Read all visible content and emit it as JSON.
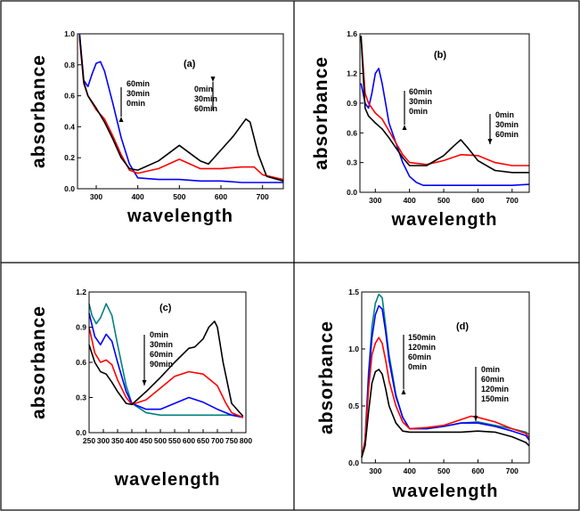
{
  "chart_data": [
    {
      "type": "line",
      "panel_label": "(a)",
      "xlabel": "wavelength",
      "ylabel": "absorbance",
      "xlim": [
        255,
        750
      ],
      "ylim": [
        0,
        1.0
      ],
      "xticks": [
        300,
        400,
        500,
        600,
        700
      ],
      "yticks": [
        0.0,
        0.2,
        0.4,
        0.6,
        0.8,
        1.0
      ],
      "ytick_labels": [
        "0.0",
        "0.2",
        "0.4",
        "0.6",
        "0.8",
        "1.0"
      ],
      "annotations": [
        {
          "lines": [
            "60min",
            "30min",
            "0min"
          ],
          "arrow": "up"
        },
        {
          "lines": [
            "0min",
            "30min",
            "60min"
          ],
          "arrow": "down"
        }
      ],
      "series": [
        {
          "color": "#0000ff",
          "x": [
            260,
            270,
            280,
            290,
            300,
            310,
            320,
            340,
            360,
            380,
            400,
            450,
            500,
            550,
            600,
            650,
            700,
            750
          ],
          "y": [
            1.0,
            0.7,
            0.66,
            0.74,
            0.81,
            0.82,
            0.76,
            0.55,
            0.33,
            0.16,
            0.07,
            0.06,
            0.06,
            0.05,
            0.05,
            0.04,
            0.04,
            0.04
          ]
        },
        {
          "color": "#ff0000",
          "x": [
            260,
            270,
            280,
            300,
            320,
            340,
            360,
            380,
            400,
            450,
            500,
            550,
            600,
            650,
            680,
            700,
            750
          ],
          "y": [
            0.97,
            0.68,
            0.6,
            0.51,
            0.45,
            0.34,
            0.22,
            0.12,
            0.1,
            0.13,
            0.19,
            0.13,
            0.13,
            0.14,
            0.14,
            0.09,
            0.06
          ]
        },
        {
          "color": "#000000",
          "x": [
            260,
            270,
            280,
            300,
            320,
            340,
            360,
            380,
            400,
            450,
            500,
            550,
            570,
            600,
            630,
            660,
            670,
            690,
            710,
            750
          ],
          "y": [
            0.99,
            0.69,
            0.6,
            0.52,
            0.43,
            0.32,
            0.2,
            0.13,
            0.12,
            0.18,
            0.28,
            0.18,
            0.16,
            0.25,
            0.34,
            0.45,
            0.43,
            0.22,
            0.08,
            0.05
          ]
        }
      ]
    },
    {
      "type": "line",
      "panel_label": "(b)",
      "xlabel": "wavelength",
      "ylabel": "absorbance",
      "xlim": [
        255,
        750
      ],
      "ylim": [
        0,
        1.6
      ],
      "xticks": [
        300,
        400,
        500,
        600,
        700
      ],
      "yticks": [
        0.0,
        0.3,
        0.6,
        0.9,
        1.2,
        1.6
      ],
      "ytick_labels": [
        "0.0",
        "0.3",
        "0.6",
        "0.9",
        "1.2",
        "1.6"
      ],
      "annotations": [
        {
          "lines": [
            "60min",
            "30min",
            "0min"
          ],
          "arrow": "up"
        },
        {
          "lines": [
            "0min",
            "30min",
            "60min"
          ],
          "arrow": "down"
        }
      ],
      "series": [
        {
          "color": "#0000ff",
          "x": [
            258,
            270,
            280,
            290,
            300,
            310,
            320,
            330,
            340,
            360,
            380,
            400,
            420,
            440,
            500,
            600,
            700,
            750
          ],
          "y": [
            1.1,
            0.9,
            0.85,
            1.0,
            1.2,
            1.25,
            1.1,
            0.9,
            0.7,
            0.5,
            0.3,
            0.16,
            0.1,
            0.07,
            0.07,
            0.07,
            0.07,
            0.08
          ]
        },
        {
          "color": "#ff0000",
          "x": [
            258,
            270,
            280,
            300,
            320,
            340,
            360,
            380,
            400,
            450,
            500,
            550,
            600,
            650,
            700,
            750
          ],
          "y": [
            1.58,
            1.0,
            0.9,
            0.8,
            0.74,
            0.62,
            0.5,
            0.38,
            0.3,
            0.28,
            0.32,
            0.38,
            0.37,
            0.3,
            0.27,
            0.27
          ]
        },
        {
          "color": "#000000",
          "x": [
            258,
            270,
            280,
            300,
            320,
            340,
            360,
            380,
            400,
            450,
            500,
            530,
            550,
            570,
            600,
            650,
            700,
            750
          ],
          "y": [
            1.58,
            0.85,
            0.77,
            0.7,
            0.64,
            0.55,
            0.45,
            0.35,
            0.27,
            0.27,
            0.37,
            0.47,
            0.53,
            0.45,
            0.32,
            0.22,
            0.2,
            0.2
          ]
        }
      ]
    },
    {
      "type": "line",
      "panel_label": "(c)",
      "xlabel": "wavelength",
      "ylabel": "absorbance",
      "xlim": [
        250,
        800
      ],
      "ylim": [
        0,
        1.2
      ],
      "xticks": [
        250,
        300,
        350,
        400,
        450,
        500,
        550,
        600,
        650,
        700,
        750,
        800
      ],
      "xtick_labels": [
        "250",
        "300",
        "350",
        "400",
        "450",
        "500",
        "550",
        "600",
        "650",
        "700",
        "750",
        "800"
      ],
      "yticks": [
        0.0,
        0.3,
        0.6,
        0.9,
        1.2
      ],
      "ytick_labels": [
        "0.0",
        "0.3",
        "0.6",
        "0.9",
        "1.2"
      ],
      "annotations": [
        {
          "lines": [
            "0min",
            "30min",
            "60min",
            "90min"
          ],
          "arrow": "down"
        }
      ],
      "series": [
        {
          "color": "#008080",
          "x": [
            250,
            260,
            275,
            290,
            310,
            330,
            350,
            380,
            400,
            450,
            500,
            600,
            700,
            760,
            790
          ],
          "y": [
            1.1,
            1.0,
            0.93,
            0.98,
            1.1,
            1.0,
            0.75,
            0.4,
            0.25,
            0.17,
            0.15,
            0.15,
            0.15,
            0.15,
            0.13
          ]
        },
        {
          "color": "#0000ff",
          "x": [
            250,
            270,
            290,
            310,
            330,
            350,
            380,
            400,
            450,
            500,
            550,
            600,
            650,
            700,
            750,
            790
          ],
          "y": [
            1.02,
            0.82,
            0.75,
            0.84,
            0.78,
            0.6,
            0.35,
            0.25,
            0.2,
            0.2,
            0.25,
            0.3,
            0.26,
            0.2,
            0.15,
            0.13
          ]
        },
        {
          "color": "#ff0000",
          "x": [
            250,
            270,
            290,
            310,
            330,
            350,
            380,
            400,
            450,
            500,
            550,
            600,
            650,
            700,
            730,
            750,
            790
          ],
          "y": [
            0.9,
            0.68,
            0.6,
            0.62,
            0.58,
            0.45,
            0.3,
            0.24,
            0.28,
            0.38,
            0.48,
            0.52,
            0.5,
            0.4,
            0.25,
            0.17,
            0.13
          ]
        },
        {
          "color": "#000000",
          "x": [
            250,
            270,
            290,
            310,
            330,
            350,
            380,
            400,
            450,
            500,
            550,
            600,
            620,
            650,
            670,
            690,
            700,
            720,
            750,
            790
          ],
          "y": [
            0.75,
            0.6,
            0.52,
            0.5,
            0.43,
            0.35,
            0.25,
            0.24,
            0.35,
            0.47,
            0.6,
            0.72,
            0.73,
            0.8,
            0.9,
            0.95,
            0.9,
            0.6,
            0.25,
            0.14
          ]
        }
      ]
    },
    {
      "type": "line",
      "panel_label": "(d)",
      "xlabel": "wavelength",
      "ylabel": "absorbance",
      "xlim": [
        260,
        750
      ],
      "ylim": [
        0,
        1.5
      ],
      "xticks": [
        300,
        400,
        500,
        600,
        700
      ],
      "yticks": [
        0.0,
        0.5,
        1.0,
        1.5
      ],
      "ytick_labels": [
        "0.0",
        "0.5",
        "1.0",
        "1.5"
      ],
      "annotations": [
        {
          "lines": [
            "150min",
            "120min",
            "60min",
            "0min"
          ],
          "arrow": "up"
        },
        {
          "lines": [
            "0min",
            "60min",
            "120min",
            "150min"
          ],
          "arrow": "down"
        }
      ],
      "series": [
        {
          "color": "#008080",
          "x": [
            260,
            270,
            280,
            290,
            300,
            310,
            320,
            330,
            340,
            360,
            380,
            400,
            450,
            500,
            550,
            600,
            650,
            700,
            740,
            750
          ],
          "y": [
            0.05,
            0.2,
            0.8,
            1.2,
            1.4,
            1.48,
            1.45,
            1.2,
            0.95,
            0.6,
            0.4,
            0.3,
            0.3,
            0.32,
            0.35,
            0.36,
            0.33,
            0.3,
            0.27,
            0.25
          ]
        },
        {
          "color": "#0000ff",
          "x": [
            260,
            270,
            280,
            290,
            300,
            310,
            320,
            330,
            340,
            360,
            380,
            400,
            450,
            500,
            550,
            600,
            650,
            700,
            740,
            750
          ],
          "y": [
            0.05,
            0.2,
            0.75,
            1.1,
            1.3,
            1.38,
            1.35,
            1.15,
            0.9,
            0.58,
            0.4,
            0.3,
            0.3,
            0.32,
            0.35,
            0.35,
            0.32,
            0.28,
            0.24,
            0.2
          ]
        },
        {
          "color": "#ff0000",
          "x": [
            260,
            270,
            280,
            290,
            300,
            310,
            320,
            330,
            340,
            360,
            380,
            400,
            450,
            500,
            550,
            580,
            600,
            650,
            700,
            740,
            750
          ],
          "y": [
            0.05,
            0.2,
            0.65,
            0.95,
            1.05,
            1.1,
            1.05,
            0.9,
            0.72,
            0.5,
            0.36,
            0.3,
            0.31,
            0.33,
            0.38,
            0.41,
            0.4,
            0.36,
            0.3,
            0.26,
            0.22
          ]
        },
        {
          "color": "#000000",
          "x": [
            260,
            270,
            280,
            290,
            300,
            310,
            320,
            330,
            340,
            360,
            380,
            400,
            450,
            500,
            550,
            600,
            650,
            700,
            740,
            750
          ],
          "y": [
            0.05,
            0.15,
            0.45,
            0.7,
            0.8,
            0.82,
            0.78,
            0.65,
            0.5,
            0.35,
            0.28,
            0.27,
            0.27,
            0.27,
            0.27,
            0.28,
            0.27,
            0.23,
            0.18,
            0.15
          ]
        }
      ]
    }
  ]
}
